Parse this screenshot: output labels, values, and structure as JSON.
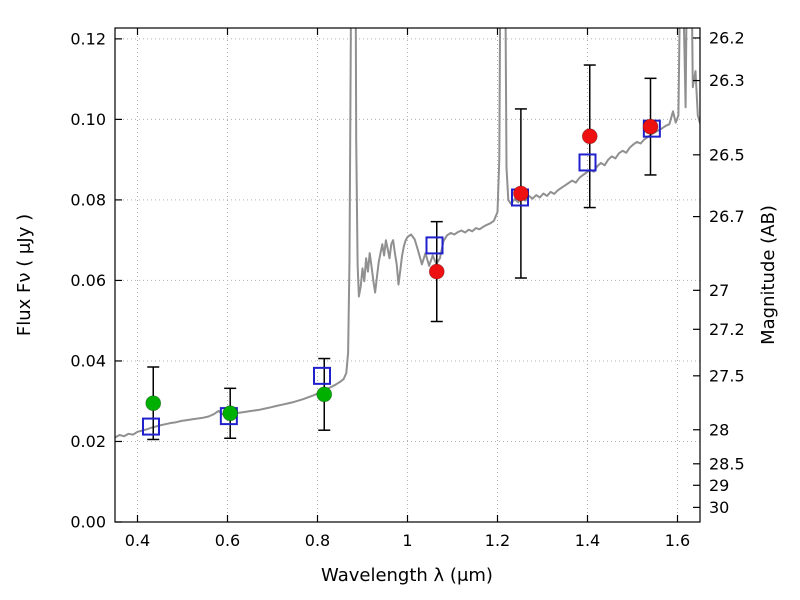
{
  "figure": {
    "background": "#ffffff"
  },
  "chart_data": {
    "type": "line",
    "title": "",
    "xlabel": "Wavelength  λ (μm)",
    "ylabel_left": "Flux  Fν  ( μJy )",
    "ylabel_right": "Magnitude (AB)",
    "xlim": [
      0.35,
      1.65
    ],
    "ylim": [
      0.0,
      0.1227
    ],
    "grid": true,
    "x_ticks": {
      "values": [
        0.4,
        0.6,
        0.8,
        1.0,
        1.2,
        1.4,
        1.6
      ],
      "labels": [
        "0.4",
        "0.6",
        "0.8",
        "1",
        "1.2",
        "1.4",
        "1.6"
      ]
    },
    "y_ticks_left": {
      "values": [
        0.0,
        0.02,
        0.04,
        0.06,
        0.08,
        0.1,
        0.12
      ],
      "labels": [
        "0.00",
        "0.02",
        "0.04",
        "0.06",
        "0.08",
        "0.10",
        "0.12"
      ]
    },
    "right_axis": {
      "zeropoint_ab_ujy": 23.9,
      "ticks": {
        "values": [
          26.2,
          26.3,
          26.5,
          26.7,
          27.0,
          27.2,
          27.5,
          28.0,
          28.5,
          29.0,
          30.0
        ],
        "labels": [
          "26.2",
          "26.3",
          "26.5",
          "26.7",
          "27",
          "27.2",
          "27.5",
          "28",
          "28.5",
          "29",
          "30"
        ]
      }
    },
    "colors": {
      "spectrum": "#909090",
      "model_square": "#2020cc",
      "observed_green": "#00b000",
      "observed_red": "#ee1111",
      "error_bar": "#000000",
      "grid": "#b0b0b0",
      "axis": "#000000"
    },
    "series": [
      {
        "name": "model-spectrum",
        "kind": "line",
        "color_key": "spectrum",
        "points": [
          [
            0.35,
            0.021
          ],
          [
            0.36,
            0.0216
          ],
          [
            0.37,
            0.0213
          ],
          [
            0.38,
            0.0219
          ],
          [
            0.39,
            0.0217
          ],
          [
            0.4,
            0.0224
          ],
          [
            0.41,
            0.0227
          ],
          [
            0.42,
            0.023
          ],
          [
            0.43,
            0.0234
          ],
          [
            0.44,
            0.0237
          ],
          [
            0.45,
            0.024
          ],
          [
            0.462,
            0.0243
          ],
          [
            0.474,
            0.0246
          ],
          [
            0.486,
            0.0248
          ],
          [
            0.498,
            0.0251
          ],
          [
            0.51,
            0.0253
          ],
          [
            0.522,
            0.0255
          ],
          [
            0.534,
            0.0257
          ],
          [
            0.546,
            0.0259
          ],
          [
            0.558,
            0.0262
          ],
          [
            0.57,
            0.0268
          ],
          [
            0.58,
            0.0276
          ],
          [
            0.588,
            0.0268
          ],
          [
            0.6,
            0.0266
          ],
          [
            0.612,
            0.0269
          ],
          [
            0.624,
            0.0271
          ],
          [
            0.636,
            0.0273
          ],
          [
            0.648,
            0.0275
          ],
          [
            0.66,
            0.0277
          ],
          [
            0.672,
            0.0279
          ],
          [
            0.684,
            0.0282
          ],
          [
            0.696,
            0.0285
          ],
          [
            0.708,
            0.0288
          ],
          [
            0.72,
            0.0291
          ],
          [
            0.732,
            0.0294
          ],
          [
            0.744,
            0.0297
          ],
          [
            0.756,
            0.0301
          ],
          [
            0.768,
            0.0305
          ],
          [
            0.78,
            0.031
          ],
          [
            0.792,
            0.0315
          ],
          [
            0.804,
            0.0321
          ],
          [
            0.816,
            0.0328
          ],
          [
            0.828,
            0.0334
          ],
          [
            0.84,
            0.0341
          ],
          [
            0.85,
            0.0348
          ],
          [
            0.858,
            0.0355
          ],
          [
            0.864,
            0.037
          ],
          [
            0.868,
            0.042
          ],
          [
            0.871,
            0.065
          ],
          [
            0.874,
            0.12
          ],
          [
            0.877,
            0.24
          ],
          [
            0.88,
            0.3
          ],
          [
            0.883,
            0.19
          ],
          [
            0.886,
            0.095
          ],
          [
            0.889,
            0.064
          ],
          [
            0.892,
            0.056
          ],
          [
            0.896,
            0.0585
          ],
          [
            0.9,
            0.063
          ],
          [
            0.904,
            0.0598
          ],
          [
            0.908,
            0.0655
          ],
          [
            0.912,
            0.0622
          ],
          [
            0.916,
            0.0668
          ],
          [
            0.92,
            0.0635
          ],
          [
            0.924,
            0.06
          ],
          [
            0.928,
            0.057
          ],
          [
            0.932,
            0.0608
          ],
          [
            0.936,
            0.0645
          ],
          [
            0.94,
            0.0668
          ],
          [
            0.944,
            0.069
          ],
          [
            0.948,
            0.0662
          ],
          [
            0.952,
            0.07
          ],
          [
            0.956,
            0.0678
          ],
          [
            0.96,
            0.0655
          ],
          [
            0.964,
            0.069
          ],
          [
            0.968,
            0.07
          ],
          [
            0.972,
            0.0668
          ],
          [
            0.976,
            0.064
          ],
          [
            0.98,
            0.059
          ],
          [
            0.984,
            0.0625
          ],
          [
            0.988,
            0.0662
          ],
          [
            0.992,
            0.0685
          ],
          [
            0.996,
            0.07
          ],
          [
            1.0,
            0.0708
          ],
          [
            1.008,
            0.0714
          ],
          [
            1.016,
            0.0702
          ],
          [
            1.024,
            0.0672
          ],
          [
            1.032,
            0.064
          ],
          [
            1.04,
            0.0668
          ],
          [
            1.048,
            0.0636
          ],
          [
            1.056,
            0.0662
          ],
          [
            1.064,
            0.0641
          ],
          [
            1.072,
            0.0655
          ],
          [
            1.08,
            0.0698
          ],
          [
            1.088,
            0.0712
          ],
          [
            1.096,
            0.0718
          ],
          [
            1.104,
            0.0714
          ],
          [
            1.112,
            0.072
          ],
          [
            1.12,
            0.0724
          ],
          [
            1.128,
            0.0719
          ],
          [
            1.136,
            0.0726
          ],
          [
            1.144,
            0.0722
          ],
          [
            1.152,
            0.073
          ],
          [
            1.16,
            0.0727
          ],
          [
            1.168,
            0.0733
          ],
          [
            1.176,
            0.0738
          ],
          [
            1.184,
            0.0742
          ],
          [
            1.192,
            0.0748
          ],
          [
            1.2,
            0.077
          ],
          [
            1.204,
            0.09
          ],
          [
            1.208,
            0.17
          ],
          [
            1.212,
            0.3
          ],
          [
            1.216,
            0.16
          ],
          [
            1.22,
            0.088
          ],
          [
            1.224,
            0.08
          ],
          [
            1.23,
            0.079
          ],
          [
            1.238,
            0.0802
          ],
          [
            1.246,
            0.0794
          ],
          [
            1.254,
            0.0806
          ],
          [
            1.262,
            0.0798
          ],
          [
            1.27,
            0.081
          ],
          [
            1.278,
            0.0803
          ],
          [
            1.286,
            0.0812
          ],
          [
            1.294,
            0.0806
          ],
          [
            1.302,
            0.0816
          ],
          [
            1.31,
            0.081
          ],
          [
            1.318,
            0.082
          ],
          [
            1.326,
            0.0815
          ],
          [
            1.334,
            0.0824
          ],
          [
            1.342,
            0.083
          ],
          [
            1.35,
            0.0836
          ],
          [
            1.358,
            0.0842
          ],
          [
            1.366,
            0.0848
          ],
          [
            1.374,
            0.0843
          ],
          [
            1.382,
            0.0855
          ],
          [
            1.39,
            0.0862
          ],
          [
            1.398,
            0.0868
          ],
          [
            1.406,
            0.0875
          ],
          [
            1.414,
            0.087
          ],
          [
            1.422,
            0.0884
          ],
          [
            1.43,
            0.0892
          ],
          [
            1.438,
            0.0886
          ],
          [
            1.446,
            0.09
          ],
          [
            1.454,
            0.0908
          ],
          [
            1.462,
            0.0903
          ],
          [
            1.47,
            0.0916
          ],
          [
            1.478,
            0.0922
          ],
          [
            1.486,
            0.0917
          ],
          [
            1.494,
            0.093
          ],
          [
            1.502,
            0.0938
          ],
          [
            1.51,
            0.0944
          ],
          [
            1.518,
            0.094
          ],
          [
            1.526,
            0.095
          ],
          [
            1.534,
            0.0956
          ],
          [
            1.542,
            0.0963
          ],
          [
            1.55,
            0.0968
          ],
          [
            1.558,
            0.0973
          ],
          [
            1.566,
            0.0978
          ],
          [
            1.574,
            0.0984
          ],
          [
            1.582,
            0.0988
          ],
          [
            1.59,
            0.102
          ],
          [
            1.596,
            0.0992
          ],
          [
            1.602,
            0.101
          ],
          [
            1.606,
            0.135
          ],
          [
            1.61,
            0.26
          ],
          [
            1.614,
            0.125
          ],
          [
            1.618,
            0.103
          ],
          [
            1.622,
            0.15
          ],
          [
            1.626,
            0.3
          ],
          [
            1.63,
            0.15
          ],
          [
            1.634,
            0.108
          ],
          [
            1.64,
            0.112
          ],
          [
            1.645,
            0.101
          ],
          [
            1.65,
            0.099
          ]
        ]
      },
      {
        "name": "model-photometry",
        "kind": "scatter",
        "marker": "open-square",
        "color_key": "model_square",
        "points": [
          {
            "x": 0.43,
            "y": 0.0237
          },
          {
            "x": 0.603,
            "y": 0.0263
          },
          {
            "x": 0.81,
            "y": 0.0363
          },
          {
            "x": 1.06,
            "y": 0.0687
          },
          {
            "x": 1.25,
            "y": 0.0806
          },
          {
            "x": 1.4,
            "y": 0.0893
          },
          {
            "x": 1.543,
            "y": 0.0977
          }
        ]
      },
      {
        "name": "observed-photometry-optical",
        "kind": "scatter",
        "marker": "filled-circle",
        "color_key": "observed_green",
        "points": [
          {
            "x": 0.435,
            "y": 0.0295,
            "ylo": 0.0205,
            "yhi": 0.0385
          },
          {
            "x": 0.606,
            "y": 0.027,
            "ylo": 0.0208,
            "yhi": 0.0332
          },
          {
            "x": 0.815,
            "y": 0.0317,
            "ylo": 0.0228,
            "yhi": 0.0406
          }
        ]
      },
      {
        "name": "observed-photometry-infrared",
        "kind": "scatter",
        "marker": "filled-circle",
        "color_key": "observed_red",
        "points": [
          {
            "x": 1.065,
            "y": 0.0622,
            "ylo": 0.0498,
            "yhi": 0.0746
          },
          {
            "x": 1.252,
            "y": 0.0816,
            "ylo": 0.0606,
            "yhi": 0.1026
          },
          {
            "x": 1.405,
            "y": 0.0958,
            "ylo": 0.0781,
            "yhi": 0.1135
          },
          {
            "x": 1.54,
            "y": 0.0982,
            "ylo": 0.0862,
            "yhi": 0.1102
          }
        ]
      }
    ]
  }
}
